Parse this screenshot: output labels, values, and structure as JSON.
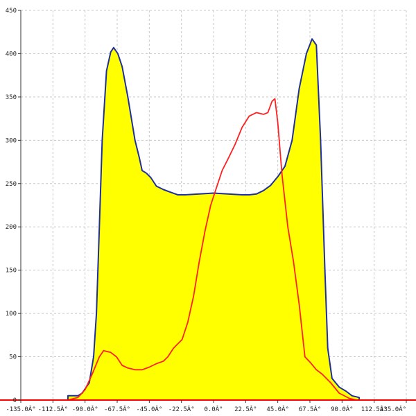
{
  "chart_data": {
    "type": "area",
    "title": "",
    "xlabel": "",
    "ylabel": "",
    "xlim": [
      -135,
      135
    ],
    "ylim": [
      0,
      450
    ],
    "grid": true,
    "x_ticks": [
      -135,
      -112.5,
      -90,
      -67.5,
      -45,
      -22.5,
      0,
      22.5,
      45,
      67.5,
      90,
      112.5,
      135
    ],
    "x_tick_labels": [
      "-135.0Â°",
      "-112.5Â°",
      "-90.0Â°",
      "-67.5Â°",
      "-45.0Â°",
      "-22.5Â°",
      "0.0Â°",
      "22.5Â°",
      "45.0Â°",
      "67.5Â°",
      "90.0Â°",
      "112.5Â°",
      "135.0Â°"
    ],
    "y_ticks": [
      0,
      50,
      100,
      150,
      200,
      250,
      300,
      350,
      400,
      450
    ],
    "y_tick_labels": [
      "0",
      "50",
      "100",
      "150",
      "200",
      "250",
      "300",
      "350",
      "400",
      "450"
    ],
    "colors": {
      "fill": "#ffff00",
      "outline": "#1f2f9f",
      "curve": "#ff2020",
      "grid": "#c8c8c8",
      "axis": "#333333",
      "baseline": "#ff0000"
    },
    "series": [
      {
        "style": "filled-area",
        "points": [
          [
            -102,
            0
          ],
          [
            -102,
            5
          ],
          [
            -95,
            5
          ],
          [
            -92,
            8
          ],
          [
            -87,
            20
          ],
          [
            -84,
            50
          ],
          [
            -82,
            100
          ],
          [
            -80,
            200
          ],
          [
            -78,
            300
          ],
          [
            -75,
            380
          ],
          [
            -72,
            402
          ],
          [
            -70,
            407
          ],
          [
            -67,
            400
          ],
          [
            -64,
            385
          ],
          [
            -60,
            350
          ],
          [
            -55,
            300
          ],
          [
            -52,
            280
          ],
          [
            -50,
            265
          ],
          [
            -47,
            262
          ],
          [
            -44,
            257
          ],
          [
            -40,
            247
          ],
          [
            -35,
            243
          ],
          [
            -30,
            240
          ],
          [
            -25,
            237
          ],
          [
            -20,
            237
          ],
          [
            -10,
            238
          ],
          [
            0,
            239
          ],
          [
            10,
            238
          ],
          [
            20,
            237
          ],
          [
            25,
            237
          ],
          [
            30,
            238
          ],
          [
            35,
            242
          ],
          [
            40,
            248
          ],
          [
            45,
            258
          ],
          [
            50,
            270
          ],
          [
            55,
            300
          ],
          [
            60,
            360
          ],
          [
            65,
            400
          ],
          [
            69,
            417
          ],
          [
            72,
            410
          ],
          [
            75,
            300
          ],
          [
            78,
            150
          ],
          [
            80,
            60
          ],
          [
            83,
            25
          ],
          [
            88,
            15
          ],
          [
            93,
            10
          ],
          [
            97,
            5
          ],
          [
            102,
            3
          ],
          [
            102,
            0
          ]
        ]
      },
      {
        "style": "line",
        "points": [
          [
            -102,
            0
          ],
          [
            -95,
            3
          ],
          [
            -90,
            12
          ],
          [
            -85,
            30
          ],
          [
            -80,
            50
          ],
          [
            -77,
            57
          ],
          [
            -72,
            55
          ],
          [
            -68,
            50
          ],
          [
            -64,
            40
          ],
          [
            -60,
            37
          ],
          [
            -55,
            35
          ],
          [
            -50,
            35
          ],
          [
            -45,
            38
          ],
          [
            -40,
            42
          ],
          [
            -35,
            45
          ],
          [
            -32,
            50
          ],
          [
            -28,
            60
          ],
          [
            -22,
            70
          ],
          [
            -18,
            90
          ],
          [
            -14,
            120
          ],
          [
            -10,
            160
          ],
          [
            -6,
            195
          ],
          [
            -2,
            225
          ],
          [
            2,
            245
          ],
          [
            6,
            265
          ],
          [
            10,
            278
          ],
          [
            15,
            295
          ],
          [
            20,
            315
          ],
          [
            25,
            328
          ],
          [
            30,
            332
          ],
          [
            35,
            330
          ],
          [
            38,
            332
          ],
          [
            41,
            345
          ],
          [
            43,
            348
          ],
          [
            45,
            320
          ],
          [
            48,
            260
          ],
          [
            52,
            200
          ],
          [
            56,
            160
          ],
          [
            60,
            110
          ],
          [
            64,
            50
          ],
          [
            68,
            43
          ],
          [
            72,
            35
          ],
          [
            76,
            30
          ],
          [
            82,
            20
          ],
          [
            88,
            8
          ],
          [
            95,
            2
          ],
          [
            100,
            0
          ]
        ]
      }
    ]
  }
}
